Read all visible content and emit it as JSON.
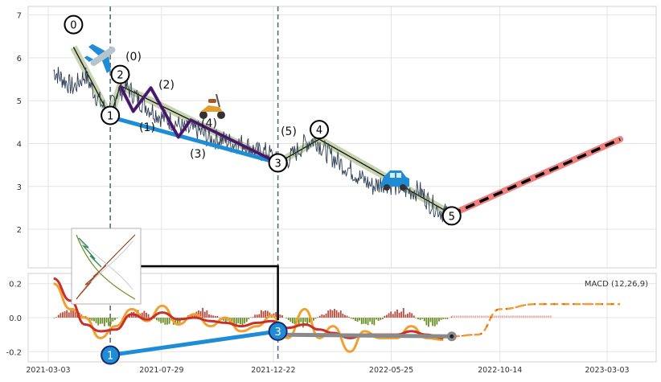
{
  "chart_data": [
    {
      "type": "line",
      "panel": "price",
      "title": "",
      "xlabel": "",
      "ylabel": "",
      "ylim": [
        1.1,
        7.2
      ],
      "yticks": [
        "2",
        "3",
        "4",
        "5",
        "6",
        "7"
      ],
      "yticks_values": [
        2,
        3,
        4,
        5,
        6,
        7
      ],
      "grid": true,
      "price_series": {
        "dates": [
          "2021-03-10",
          "2021-03-22",
          "2021-04-05",
          "2021-04-20",
          "2021-05-05",
          "2021-05-20",
          "2021-06-01",
          "2021-06-15",
          "2021-06-30",
          "2021-07-15",
          "2021-07-30",
          "2021-08-15",
          "2021-08-30",
          "2021-09-15",
          "2021-09-30",
          "2021-10-15",
          "2021-10-30",
          "2021-11-15",
          "2021-11-30",
          "2021-12-15",
          "2021-12-30",
          "2022-01-15",
          "2022-02-01",
          "2022-02-15",
          "2022-03-01",
          "2022-03-15",
          "2022-04-01",
          "2022-04-15",
          "2022-05-01",
          "2022-05-15",
          "2022-06-01",
          "2022-06-15",
          "2022-07-01",
          "2022-07-15",
          "2022-07-31",
          "2022-08-12"
        ],
        "values": [
          5.7,
          5.5,
          5.3,
          5.6,
          5.1,
          4.7,
          5.2,
          5.3,
          5.0,
          4.8,
          4.6,
          4.5,
          4.3,
          4.3,
          4.1,
          4.1,
          4.0,
          4.0,
          3.8,
          3.8,
          3.5,
          3.7,
          4.0,
          4.1,
          3.8,
          3.6,
          3.4,
          3.2,
          3.0,
          3.1,
          3.0,
          2.9,
          2.9,
          2.6,
          2.4,
          2.3
        ]
      },
      "wave_points": [
        {
          "label": "0",
          "date": "2021-04-05",
          "value": 6.25
        },
        {
          "label": "1",
          "date": "2021-05-23",
          "value": 4.62
        },
        {
          "label": "2",
          "date": "2021-06-05",
          "value": 5.35
        },
        {
          "label": "3",
          "date": "2021-12-28",
          "value": 3.55
        },
        {
          "label": "4",
          "date": "2022-02-20",
          "value": 4.1
        },
        {
          "label": "5",
          "date": "2022-08-12",
          "value": 2.35
        }
      ],
      "sub_wave_labels": [
        "(0)",
        "(1)",
        "(2)",
        "(3)",
        "(4)",
        "(5)"
      ],
      "sub_wave_points": [
        {
          "date": "2021-06-05",
          "value": 5.35
        },
        {
          "date": "2021-06-22",
          "value": 4.75
        },
        {
          "date": "2021-07-15",
          "value": 5.3
        },
        {
          "date": "2021-08-20",
          "value": 4.15
        },
        {
          "date": "2021-09-05",
          "value": 4.55
        },
        {
          "date": "2021-12-28",
          "value": 3.55
        }
      ],
      "projection": {
        "from": {
          "date": "2022-08-12",
          "value": 2.35
        },
        "to": {
          "date": "2023-03-20",
          "value": 4.1
        }
      },
      "vlines": [
        "2021-05-23",
        "2021-12-28"
      ],
      "markers": [
        "airplane-emoji",
        "scooter-emoji",
        "car-emoji"
      ],
      "colors": {
        "price": "#2f3e55",
        "trend_band": "#c8d4b0",
        "wave1_line": "#1f8dd6",
        "subwave": "#5a1a8c",
        "projection_bg": "#f08080",
        "projection_fg": "#000000"
      }
    },
    {
      "type": "line",
      "panel": "macd",
      "annotation": "MACD (12,26,9)",
      "ylim": [
        -0.26,
        0.26
      ],
      "yticks": [
        "-0.2",
        "0.0",
        "0.2"
      ],
      "yticks_values": [
        -0.2,
        0.0,
        0.2
      ],
      "xticks": [
        "2021-03-03",
        "2021-07-29",
        "2021-12-22",
        "2022-05-25",
        "2022-10-14",
        "2023-03-03"
      ],
      "xticks_dates": [
        "2021-03-03",
        "2021-07-29",
        "2021-12-22",
        "2022-05-25",
        "2022-10-14",
        "2023-03-03"
      ],
      "macd_dates": [
        "2021-03-10",
        "2021-04-01",
        "2021-04-20",
        "2021-05-10",
        "2021-05-30",
        "2021-06-20",
        "2021-07-10",
        "2021-07-30",
        "2021-08-20",
        "2021-09-10",
        "2021-10-01",
        "2021-10-20",
        "2021-11-10",
        "2021-12-01",
        "2021-12-20",
        "2022-01-10",
        "2022-02-01",
        "2022-02-20",
        "2022-03-10",
        "2022-04-01",
        "2022-04-20",
        "2022-05-10",
        "2022-06-01",
        "2022-06-20",
        "2022-07-10",
        "2022-08-01"
      ],
      "macd_values": [
        0.2,
        0.05,
        0.0,
        -0.12,
        -0.05,
        0.05,
        -0.02,
        0.07,
        -0.04,
        0.02,
        -0.05,
        0.0,
        -0.08,
        -0.05,
        0.01,
        -0.12,
        0.05,
        -0.12,
        -0.05,
        -0.2,
        -0.08,
        -0.12,
        -0.12,
        -0.05,
        -0.12,
        -0.13
      ],
      "signal_values": [
        0.23,
        0.1,
        -0.04,
        -0.08,
        -0.07,
        0.02,
        -0.01,
        0.03,
        -0.01,
        0.0,
        -0.02,
        -0.03,
        -0.05,
        -0.03,
        -0.02,
        -0.06,
        -0.04,
        -0.07,
        -0.09,
        -0.12,
        -0.1,
        -0.1,
        -0.1,
        -0.08,
        -0.1,
        -0.12
      ],
      "projected_macd": {
        "dates": [
          "2022-08-12",
          "2022-09-15",
          "2022-10-14",
          "2022-12-01",
          "2023-03-20"
        ],
        "values": [
          -0.11,
          -0.1,
          0.05,
          0.08,
          0.08
        ]
      },
      "wave_points": [
        {
          "label": "1",
          "date": "2021-05-23",
          "value": -0.22
        },
        {
          "label": "3",
          "date": "2021-12-28",
          "value": -0.08
        }
      ],
      "gray_line": {
        "from": {
          "date": "2021-12-28",
          "value": -0.1
        },
        "to": {
          "date": "2022-08-12",
          "value": -0.11
        }
      },
      "colors": {
        "macd": "#f0a030",
        "signal": "#c8302a",
        "hist_pos": "#b84a3a",
        "hist_neg": "#6b8e23",
        "wave_line": "#1f8dd6",
        "gray": "#8a8a8a"
      }
    }
  ]
}
